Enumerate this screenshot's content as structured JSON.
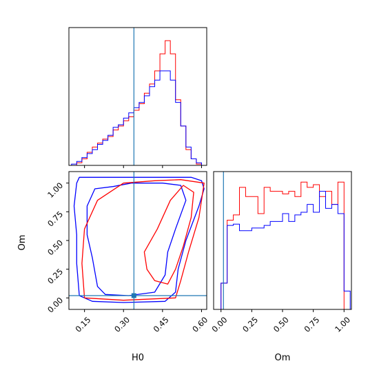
{
  "chart_data": [
    {
      "type": "histogram",
      "panel": "H0 marginal",
      "xlim": [
        0.09,
        0.62
      ],
      "marker": {
        "x": 0.34
      },
      "series": [
        {
          "color": "#ff0000",
          "bin_edges": [
            0.1,
            0.12,
            0.14,
            0.16,
            0.18,
            0.2,
            0.22,
            0.24,
            0.26,
            0.28,
            0.3,
            0.32,
            0.34,
            0.36,
            0.38,
            0.4,
            0.42,
            0.44,
            0.46,
            0.48,
            0.5,
            0.52,
            0.54,
            0.56,
            0.58,
            0.6
          ],
          "values": [
            0,
            0.02,
            0.05,
            0.1,
            0.14,
            0.17,
            0.2,
            0.22,
            0.27,
            0.3,
            0.34,
            0.37,
            0.42,
            0.47,
            0.55,
            0.62,
            0.72,
            0.85,
            0.95,
            0.85,
            0.5,
            0.3,
            0.12,
            0.05,
            0.01
          ]
        },
        {
          "color": "#0000ff",
          "bin_edges": [
            0.1,
            0.12,
            0.14,
            0.16,
            0.18,
            0.2,
            0.22,
            0.24,
            0.26,
            0.28,
            0.3,
            0.32,
            0.34,
            0.36,
            0.38,
            0.4,
            0.42,
            0.44,
            0.46,
            0.48,
            0.5,
            0.52,
            0.54,
            0.56,
            0.58,
            0.6
          ],
          "values": [
            0.01,
            0.03,
            0.06,
            0.09,
            0.12,
            0.16,
            0.19,
            0.23,
            0.29,
            0.31,
            0.36,
            0.4,
            0.44,
            0.48,
            0.53,
            0.6,
            0.65,
            0.72,
            0.72,
            0.65,
            0.48,
            0.3,
            0.14,
            0.05,
            0.02
          ]
        }
      ]
    },
    {
      "type": "contour",
      "panel": "H0 vs Om",
      "xlabel": "H0",
      "ylabel": "Om",
      "xlim": [
        0.09,
        0.62
      ],
      "ylim": [
        -0.1,
        1.1
      ],
      "xticks": [
        "0.15",
        "0.30",
        "0.45",
        "0.60"
      ],
      "xtick_values": [
        0.15,
        0.3,
        0.45,
        0.6
      ],
      "yticks": [
        "0.00",
        "0.25",
        "0.50",
        "0.75",
        "1.00"
      ],
      "ytick_values": [
        0.0,
        0.25,
        0.5,
        0.75,
        1.0
      ],
      "marker": {
        "x": 0.34,
        "y": 0.02
      },
      "contours": [
        {
          "color": "#0000ff",
          "level": "outer",
          "points": [
            [
              0.13,
              1.05
            ],
            [
              0.22,
              1.05
            ],
            [
              0.4,
              1.05
            ],
            [
              0.56,
              1.05
            ],
            [
              0.6,
              1.02
            ],
            [
              0.61,
              0.95
            ],
            [
              0.59,
              0.8
            ],
            [
              0.54,
              0.5
            ],
            [
              0.51,
              0.25
            ],
            [
              0.5,
              0.05
            ],
            [
              0.46,
              -0.03
            ],
            [
              0.3,
              -0.04
            ],
            [
              0.18,
              -0.03
            ],
            [
              0.13,
              0.02
            ],
            [
              0.12,
              0.3
            ],
            [
              0.12,
              0.55
            ],
            [
              0.11,
              0.8
            ],
            [
              0.12,
              1.0
            ]
          ]
        },
        {
          "color": "#0000ff",
          "level": "inner",
          "points": [
            [
              0.19,
              0.95
            ],
            [
              0.26,
              0.97
            ],
            [
              0.33,
              1.0
            ],
            [
              0.45,
              1.0
            ],
            [
              0.52,
              0.98
            ],
            [
              0.54,
              0.85
            ],
            [
              0.5,
              0.6
            ],
            [
              0.47,
              0.4
            ],
            [
              0.46,
              0.2
            ],
            [
              0.42,
              0.05
            ],
            [
              0.32,
              0.02
            ],
            [
              0.23,
              0.03
            ],
            [
              0.2,
              0.1
            ],
            [
              0.18,
              0.35
            ],
            [
              0.16,
              0.55
            ],
            [
              0.16,
              0.8
            ]
          ]
        },
        {
          "color": "#ff0000",
          "level": "outer",
          "points": [
            [
              0.3,
              1.0
            ],
            [
              0.42,
              1.02
            ],
            [
              0.52,
              1.03
            ],
            [
              0.61,
              1.0
            ],
            [
              0.59,
              0.7
            ],
            [
              0.55,
              0.4
            ],
            [
              0.52,
              0.15
            ],
            [
              0.5,
              0.0
            ],
            [
              0.3,
              -0.02
            ],
            [
              0.15,
              0.0
            ],
            [
              0.14,
              0.3
            ],
            [
              0.15,
              0.6
            ],
            [
              0.2,
              0.85
            ]
          ]
        },
        {
          "color": "#ff0000",
          "level": "inner",
          "points": [
            [
              0.38,
              0.4
            ],
            [
              0.43,
              0.6
            ],
            [
              0.48,
              0.85
            ],
            [
              0.53,
              0.98
            ],
            [
              0.57,
              0.92
            ],
            [
              0.56,
              0.7
            ],
            [
              0.53,
              0.45
            ],
            [
              0.5,
              0.25
            ],
            [
              0.47,
              0.12
            ],
            [
              0.42,
              0.15
            ],
            [
              0.39,
              0.25
            ]
          ]
        }
      ]
    },
    {
      "type": "histogram",
      "panel": "Om marginal",
      "xlabel": "Om",
      "xlim": [
        -0.06,
        1.06
      ],
      "xticks": [
        "0.00",
        "0.25",
        "0.50",
        "0.75",
        "1.00"
      ],
      "xtick_values": [
        0.0,
        0.25,
        0.5,
        0.75,
        1.0
      ],
      "marker": {
        "x": 0.02
      },
      "series": [
        {
          "color": "#ff0000",
          "bin_edges": [
            -0.05,
            0.0,
            0.05,
            0.1,
            0.15,
            0.2,
            0.25,
            0.3,
            0.35,
            0.4,
            0.45,
            0.5,
            0.55,
            0.6,
            0.65,
            0.7,
            0.75,
            0.8,
            0.85,
            0.9,
            0.95,
            1.0
          ],
          "values": [
            0,
            0.2,
            0.68,
            0.72,
            0.93,
            0.86,
            0.86,
            0.73,
            0.93,
            0.9,
            0.9,
            0.88,
            0.9,
            0.86,
            0.97,
            0.93,
            0.95,
            0.86,
            0.9,
            0.8,
            0.97
          ]
        },
        {
          "color": "#0000ff",
          "bin_edges": [
            -0.05,
            0.0,
            0.05,
            0.1,
            0.15,
            0.2,
            0.25,
            0.3,
            0.35,
            0.4,
            0.45,
            0.5,
            0.55,
            0.6,
            0.65,
            0.7,
            0.75,
            0.8,
            0.85,
            0.9,
            0.95,
            1.0,
            1.05
          ],
          "values": [
            0,
            0.2,
            0.64,
            0.65,
            0.6,
            0.6,
            0.62,
            0.62,
            0.64,
            0.67,
            0.67,
            0.73,
            0.67,
            0.72,
            0.74,
            0.8,
            0.74,
            0.9,
            0.77,
            0.8,
            0.73,
            0.14
          ]
        }
      ]
    }
  ]
}
